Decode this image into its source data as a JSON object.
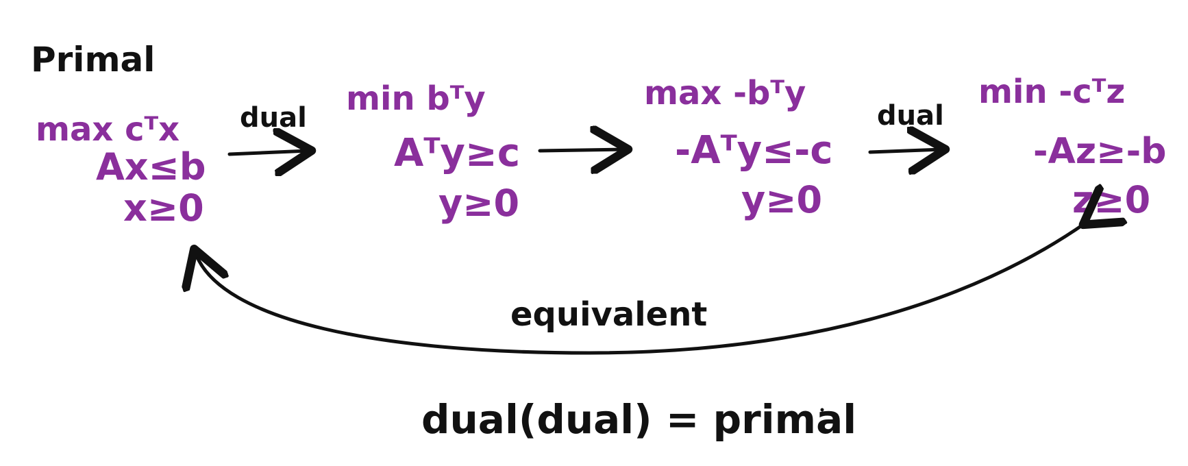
{
  "primal": {
    "heading": "Primal",
    "objective": "max cᵀx",
    "constraint": "Ax≤b",
    "nonneg": "x≥0"
  },
  "dual": {
    "objective": "min bᵀy",
    "constraint": "Aᵀy≥c",
    "nonneg": "y≥0"
  },
  "dual_rewritten": {
    "objective": "max -bᵀy",
    "constraint": "-Aᵀy≤-c",
    "nonneg": "y≥0"
  },
  "dual_of_dual": {
    "objective": "min -cᵀz",
    "constraint": "-Az≥-b",
    "nonneg": "z≥0"
  },
  "arrow_labels": {
    "first": "dual",
    "third": "dual"
  },
  "curve_label": "equivalent",
  "conclusion": "dual(dual) = primal",
  "colors": {
    "math_ink": "#8a2f9c",
    "text_ink": "#111111",
    "background": "#ffffff"
  }
}
